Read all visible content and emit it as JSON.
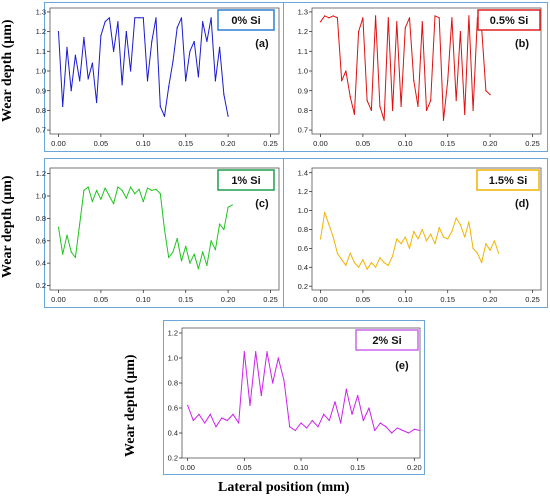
{
  "axis_labels": {
    "ylabel": "Wear depth (μm)",
    "xlabel": "Lateral position (mm)"
  },
  "chart_data": [
    {
      "type": "line",
      "panel_label": "(a)",
      "legend": "0% Si",
      "color": "#1a1ad0",
      "legend_border": "#2f7fd6",
      "xlim": [
        -0.01,
        0.26
      ],
      "ylim": [
        0.68,
        1.32
      ],
      "xticks": [
        "0.00",
        "0.05",
        "0.10",
        "0.15",
        "0.20",
        "0.25"
      ],
      "yticks": [
        "0.7",
        "0.8",
        "0.9",
        "1.0",
        "1.1",
        "1.2",
        "1.3"
      ],
      "x": [
        0.0,
        0.005,
        0.01,
        0.015,
        0.02,
        0.025,
        0.03,
        0.035,
        0.04,
        0.045,
        0.05,
        0.055,
        0.06,
        0.065,
        0.07,
        0.075,
        0.08,
        0.085,
        0.09,
        0.095,
        0.1,
        0.105,
        0.11,
        0.115,
        0.12,
        0.125,
        0.13,
        0.135,
        0.14,
        0.145,
        0.15,
        0.155,
        0.16,
        0.165,
        0.17,
        0.175,
        0.18,
        0.185,
        0.19,
        0.195,
        0.2
      ],
      "y": [
        1.2,
        0.82,
        1.12,
        0.9,
        1.08,
        0.95,
        1.17,
        0.96,
        1.04,
        0.84,
        1.18,
        1.25,
        1.27,
        1.1,
        1.25,
        0.93,
        1.2,
        1.0,
        1.27,
        1.27,
        1.27,
        0.95,
        1.15,
        1.27,
        0.82,
        0.77,
        0.92,
        1.05,
        1.22,
        1.27,
        0.95,
        1.1,
        1.15,
        0.97,
        1.25,
        1.15,
        1.27,
        0.95,
        1.12,
        0.88,
        0.77
      ]
    },
    {
      "type": "line",
      "panel_label": "(b)",
      "legend": "0.5% Si",
      "color": "#e01010",
      "legend_border": "#e02020",
      "xlim": [
        -0.01,
        0.26
      ],
      "ylim": [
        0.68,
        1.32
      ],
      "xticks": [
        "0.00",
        "0.05",
        "0.10",
        "0.15",
        "0.20",
        "0.25"
      ],
      "yticks": [
        "0.7",
        "0.8",
        "0.9",
        "1.0",
        "1.1",
        "1.2",
        "1.3"
      ],
      "x": [
        0.0,
        0.005,
        0.01,
        0.015,
        0.02,
        0.025,
        0.03,
        0.035,
        0.04,
        0.045,
        0.05,
        0.055,
        0.06,
        0.065,
        0.07,
        0.075,
        0.08,
        0.085,
        0.09,
        0.095,
        0.1,
        0.105,
        0.11,
        0.115,
        0.12,
        0.125,
        0.13,
        0.135,
        0.14,
        0.145,
        0.15,
        0.155,
        0.16,
        0.165,
        0.17,
        0.175,
        0.18,
        0.185,
        0.19,
        0.195,
        0.2
      ],
      "y": [
        1.25,
        1.28,
        1.27,
        1.28,
        1.27,
        0.95,
        1.0,
        0.87,
        0.78,
        1.2,
        1.27,
        0.85,
        0.8,
        1.28,
        0.82,
        0.75,
        1.27,
        0.8,
        1.25,
        0.82,
        1.22,
        1.27,
        0.95,
        0.82,
        1.25,
        0.8,
        0.85,
        1.28,
        1.27,
        0.75,
        0.95,
        1.27,
        0.85,
        1.2,
        0.78,
        1.28,
        0.8,
        1.27,
        1.22,
        0.9,
        0.88
      ]
    },
    {
      "type": "line",
      "panel_label": "(c)",
      "legend": "1% Si",
      "color": "#1ec41e",
      "legend_border": "#1ea04a",
      "xlim": [
        -0.01,
        0.26
      ],
      "ylim": [
        0.16,
        1.25
      ],
      "xticks": [
        "0.00",
        "0.05",
        "0.10",
        "0.15",
        "0.20",
        "0.25"
      ],
      "yticks": [
        "0.2",
        "0.4",
        "0.6",
        "0.8",
        "1.0",
        "1.2"
      ],
      "x": [
        0.0,
        0.005,
        0.01,
        0.015,
        0.02,
        0.025,
        0.03,
        0.035,
        0.04,
        0.045,
        0.05,
        0.055,
        0.06,
        0.065,
        0.07,
        0.075,
        0.08,
        0.085,
        0.09,
        0.095,
        0.1,
        0.105,
        0.11,
        0.115,
        0.12,
        0.125,
        0.13,
        0.135,
        0.14,
        0.145,
        0.15,
        0.155,
        0.16,
        0.165,
        0.17,
        0.175,
        0.18,
        0.185,
        0.19,
        0.195,
        0.2,
        0.205
      ],
      "y": [
        0.72,
        0.48,
        0.65,
        0.5,
        0.45,
        0.75,
        1.05,
        1.08,
        0.95,
        1.05,
        0.97,
        1.07,
        1.0,
        0.93,
        1.08,
        1.05,
        0.98,
        1.08,
        1.02,
        1.06,
        0.95,
        1.07,
        1.05,
        1.06,
        1.02,
        0.7,
        0.45,
        0.5,
        0.62,
        0.42,
        0.55,
        0.4,
        0.48,
        0.35,
        0.5,
        0.38,
        0.6,
        0.52,
        0.75,
        0.7,
        0.9,
        0.92
      ]
    },
    {
      "type": "line",
      "panel_label": "(d)",
      "legend": "1.5% Si",
      "color": "#f0b400",
      "legend_border": "#f0b400",
      "xlim": [
        -0.01,
        0.26
      ],
      "ylim": [
        0.16,
        1.45
      ],
      "xticks": [
        "0.00",
        "0.05",
        "0.10",
        "0.15",
        "0.20",
        "0.25"
      ],
      "yticks": [
        "0.2",
        "0.4",
        "0.6",
        "0.8",
        "1.0",
        "1.2",
        "1.4"
      ],
      "x": [
        0.0,
        0.005,
        0.01,
        0.015,
        0.02,
        0.025,
        0.03,
        0.035,
        0.04,
        0.045,
        0.05,
        0.055,
        0.06,
        0.065,
        0.07,
        0.075,
        0.08,
        0.085,
        0.09,
        0.095,
        0.1,
        0.105,
        0.11,
        0.115,
        0.12,
        0.125,
        0.13,
        0.135,
        0.14,
        0.145,
        0.15,
        0.155,
        0.16,
        0.165,
        0.17,
        0.175,
        0.18,
        0.185,
        0.19,
        0.195,
        0.2,
        0.205,
        0.21
      ],
      "y": [
        0.7,
        0.98,
        0.85,
        0.72,
        0.55,
        0.48,
        0.42,
        0.55,
        0.45,
        0.4,
        0.48,
        0.38,
        0.45,
        0.4,
        0.5,
        0.45,
        0.42,
        0.52,
        0.7,
        0.65,
        0.72,
        0.6,
        0.78,
        0.7,
        0.8,
        0.68,
        0.75,
        0.65,
        0.82,
        0.72,
        0.7,
        0.78,
        0.92,
        0.85,
        0.72,
        0.88,
        0.6,
        0.55,
        0.45,
        0.65,
        0.58,
        0.68,
        0.55
      ]
    },
    {
      "type": "line",
      "panel_label": "(e)",
      "legend": "2% Si",
      "color": "#cc22ee",
      "legend_border": "#cc66ee",
      "xlim": [
        -0.005,
        0.205
      ],
      "ylim": [
        0.2,
        1.24
      ],
      "xticks": [
        "0.00",
        "0.05",
        "0.10",
        "0.15",
        "0.20"
      ],
      "yticks": [
        "0.2",
        "0.4",
        "0.6",
        "0.8",
        "1.0",
        "1.2"
      ],
      "x": [
        0.0,
        0.005,
        0.01,
        0.015,
        0.02,
        0.025,
        0.03,
        0.035,
        0.04,
        0.045,
        0.05,
        0.055,
        0.06,
        0.065,
        0.07,
        0.075,
        0.08,
        0.085,
        0.09,
        0.095,
        0.1,
        0.105,
        0.11,
        0.115,
        0.12,
        0.125,
        0.13,
        0.135,
        0.14,
        0.145,
        0.15,
        0.155,
        0.16,
        0.165,
        0.17,
        0.175,
        0.18,
        0.185,
        0.19,
        0.195,
        0.2,
        0.205
      ],
      "y": [
        0.62,
        0.5,
        0.55,
        0.48,
        0.55,
        0.45,
        0.52,
        0.5,
        0.55,
        0.48,
        1.05,
        0.62,
        1.05,
        0.7,
        1.05,
        0.8,
        1.0,
        0.82,
        0.45,
        0.42,
        0.48,
        0.44,
        0.5,
        0.45,
        0.55,
        0.5,
        0.65,
        0.48,
        0.75,
        0.55,
        0.7,
        0.5,
        0.6,
        0.42,
        0.48,
        0.45,
        0.4,
        0.44,
        0.42,
        0.4,
        0.43,
        0.42
      ]
    }
  ]
}
